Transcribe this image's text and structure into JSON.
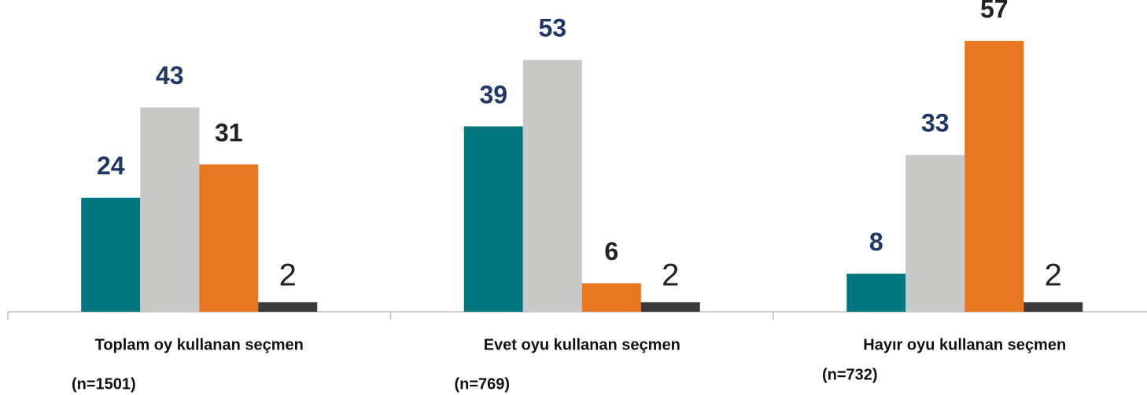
{
  "chart_data": {
    "type": "bar",
    "categories": [
      "Toplam oy kullanan seçmen",
      "Evet oyu kullanan seçmen",
      "Hayır oyu kullanan seçmen"
    ],
    "sample_sizes": [
      "(n=1501)",
      "(n=769)",
      "(n=732)"
    ],
    "series": [
      {
        "color": "#00777f",
        "label_color": "#1f3864",
        "label_weight": "bold",
        "values": [
          24,
          39,
          8
        ]
      },
      {
        "color": "#c8c8c7",
        "label_color": "#1f3864",
        "label_weight": "bold",
        "values": [
          43,
          53,
          33
        ]
      },
      {
        "color": "#e87722",
        "label_color": "#222222",
        "label_weight": "bold",
        "values": [
          31,
          6,
          57
        ]
      },
      {
        "color": "#3a3a3a",
        "label_color": "#222222",
        "label_weight": "normal",
        "values": [
          2,
          2,
          2
        ]
      }
    ],
    "ylim": [
      0,
      65.6
    ]
  }
}
